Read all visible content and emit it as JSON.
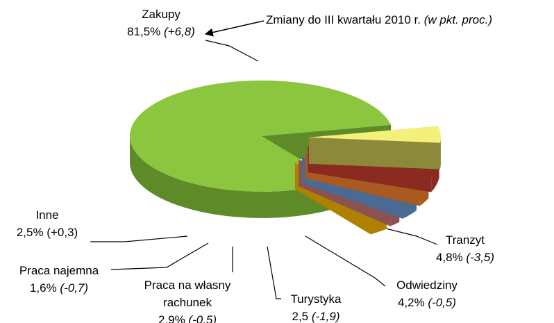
{
  "chart_data": {
    "type": "pie",
    "annotation": "Zmiany do III kwartału 2010 r.",
    "annotation_note": "(w pkt. proc.)",
    "categories": [
      "Zakupy",
      "Tranzyt",
      "Odwiedziny",
      "Turystyka",
      "Praca na własny rachunek",
      "Praca najemna",
      "Inne"
    ],
    "values": [
      81.5,
      4.8,
      4.2,
      2.5,
      2.9,
      1.6,
      2.5
    ],
    "value_labels": [
      "81,5%",
      "4,8%",
      "4,2%",
      "2,5",
      "2,9%",
      "1,6%",
      "2,5%"
    ],
    "changes": [
      6.8,
      -3.5,
      -0.5,
      -1.9,
      -0.5,
      -0.7,
      0.3
    ],
    "change_labels": [
      "(+6,8)",
      "(-3,5)",
      "(-0,5)",
      "(-1,9)",
      "(-0,5)",
      "(-0,7)",
      "(+0,3)"
    ],
    "colors": [
      "#8cc63f",
      "#f5f07a",
      "#e05a47",
      "#f79646",
      "#8db3e2",
      "#d99694",
      "#f0b400"
    ],
    "side_colors": [
      "#5e8a28",
      "#8c8a3a",
      "#8a2a20",
      "#a85a20",
      "#4a6a94",
      "#8c5250",
      "#b08000"
    ]
  }
}
